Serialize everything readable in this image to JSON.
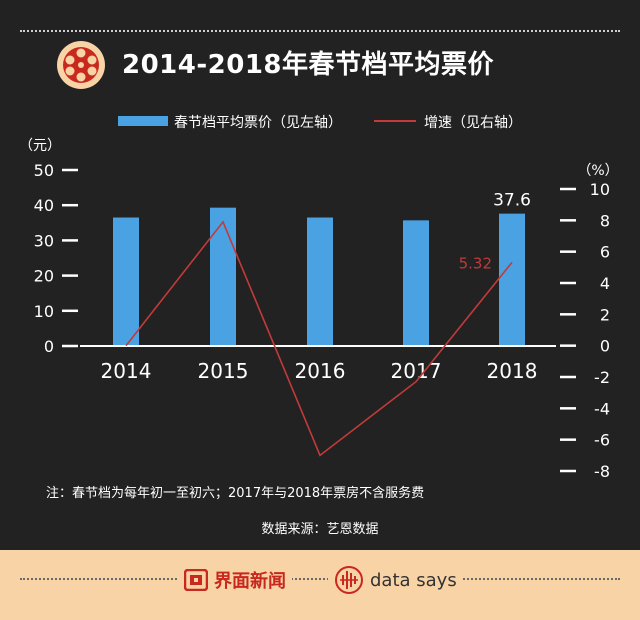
{
  "header": {
    "title": "2014-2018年春节档平均票价"
  },
  "legend": {
    "bar_label": "春节档平均票价（见左轴）",
    "line_label": "增速（见右轴）"
  },
  "colors": {
    "background": "#222222",
    "bar": "#4ba2e3",
    "line": "#c23a3a",
    "footer": "#f7d3a6",
    "brand_red": "#c8281e"
  },
  "chart_data": {
    "type": "bar",
    "categories": [
      "2014",
      "2015",
      "2016",
      "2017",
      "2018"
    ],
    "series": [
      {
        "name": "春节档平均票价（见左轴）",
        "type": "bar",
        "axis": "left",
        "values": [
          36.5,
          39.3,
          36.5,
          35.7,
          37.6
        ]
      },
      {
        "name": "增速（见右轴）",
        "type": "line",
        "axis": "right",
        "values": [
          null,
          7.9,
          -7.0,
          -2.3,
          5.32
        ]
      }
    ],
    "left_axis": {
      "label": "（元）",
      "ylim": [
        0,
        50
      ],
      "ticks": [
        0,
        10,
        20,
        30,
        40,
        50
      ]
    },
    "right_axis": {
      "label": "（%）",
      "ylim": [
        -8,
        10
      ],
      "ticks": [
        10,
        8,
        6,
        4,
        2,
        0,
        -2,
        -4,
        -6,
        -8
      ]
    },
    "data_labels": {
      "bar_2018": "37.6",
      "line_2018": "5.32"
    },
    "legend_position": "top-center",
    "grid": false
  },
  "notes": {
    "note": "注：春节档为每年初一至初六；2017年与2018年票房不含服务费",
    "source": "数据来源：艺恩数据"
  },
  "footer": {
    "brand": "界面新闻",
    "data_says": "data says"
  }
}
